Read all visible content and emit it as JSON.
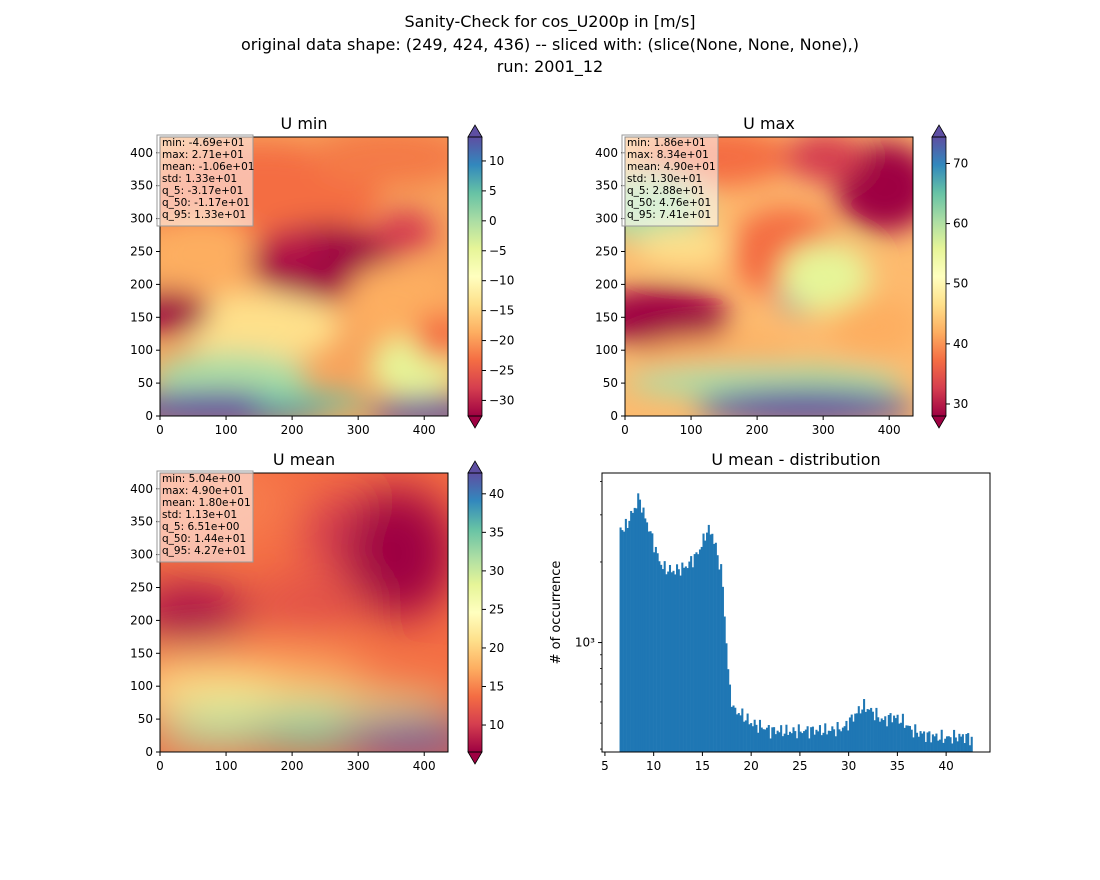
{
  "figure": {
    "title_lines": [
      "Sanity-Check for cos_U200p in [m/s]",
      "original data shape: (249, 424, 436) -- sliced with: (slice(None, None, None),)",
      "run: 2001_12"
    ]
  },
  "panels": [
    {
      "title": "U min",
      "cmap": "Spectral",
      "x_ticks": [
        "0",
        "100",
        "200",
        "300",
        "400"
      ],
      "y_ticks": [
        "0",
        "50",
        "100",
        "150",
        "200",
        "250",
        "300",
        "350",
        "400"
      ],
      "colorbar_ticks": [
        "−30",
        "−25",
        "−20",
        "−15",
        "−10",
        "−5",
        "0",
        "5",
        "10"
      ],
      "colorbar_range": [
        -32.6,
        14.0
      ],
      "stats": [
        "min: -4.69e+01",
        "max: 2.71e+01",
        "mean: -1.06e+01",
        "std: 1.33e+01",
        "q_5: -3.17e+01",
        "q_50: -1.17e+01",
        "q_95: 1.33e+01"
      ]
    },
    {
      "title": "U max",
      "cmap": "Spectral",
      "x_ticks": [
        "0",
        "100",
        "200",
        "300",
        "400"
      ],
      "y_ticks": [
        "0",
        "50",
        "100",
        "150",
        "200",
        "250",
        "300",
        "350",
        "400"
      ],
      "colorbar_ticks": [
        "30",
        "40",
        "50",
        "60",
        "70"
      ],
      "colorbar_range": [
        28.0,
        74.4
      ],
      "stats": [
        "min: 1.86e+01",
        "max: 8.34e+01",
        "mean: 4.90e+01",
        "std: 1.30e+01",
        "q_5: 2.88e+01",
        "q_50: 4.76e+01",
        "q_95: 7.41e+01"
      ]
    },
    {
      "title": "U mean",
      "cmap": "Spectral",
      "x_ticks": [
        "0",
        "100",
        "200",
        "300",
        "400"
      ],
      "y_ticks": [
        "0",
        "50",
        "100",
        "150",
        "200",
        "250",
        "300",
        "350",
        "400"
      ],
      "colorbar_ticks": [
        "10",
        "15",
        "20",
        "25",
        "30",
        "35",
        "40"
      ],
      "colorbar_range": [
        6.5,
        42.7
      ],
      "stats": [
        "min: 5.04e+00",
        "max: 4.90e+01",
        "mean: 1.80e+01",
        "std: 1.13e+01",
        "q_5: 6.51e+00",
        "q_50: 1.44e+01",
        "q_95: 4.27e+01"
      ]
    }
  ],
  "chart_data": {
    "type": "bar",
    "title": "U mean - distribution",
    "ylabel": "# of occurrence",
    "yscale": "log",
    "y_tick_label": "10³",
    "color": "#1f77b4",
    "x_ticks": [
      "5",
      "10",
      "15",
      "20",
      "25",
      "30",
      "35",
      "40"
    ],
    "xlim": [
      4.7,
      44.5
    ],
    "ylim": [
      390,
      4300
    ],
    "bin_range": [
      6.5,
      42.7
    ],
    "anchors": [
      [
        6.5,
        2700
      ],
      [
        7.0,
        2650
      ],
      [
        7.5,
        2900
      ],
      [
        8.0,
        3150
      ],
      [
        8.5,
        3500
      ],
      [
        9.0,
        3000
      ],
      [
        10.0,
        2350
      ],
      [
        10.5,
        2050
      ],
      [
        11.0,
        1900
      ],
      [
        12.0,
        1850
      ],
      [
        13.0,
        1900
      ],
      [
        13.5,
        1950
      ],
      [
        14.0,
        2050
      ],
      [
        14.5,
        2150
      ],
      [
        15.0,
        2350
      ],
      [
        15.5,
        2650
      ],
      [
        16.0,
        2550
      ],
      [
        16.5,
        2150
      ],
      [
        17.0,
        1800
      ],
      [
        17.3,
        1200
      ],
      [
        17.7,
        700
      ],
      [
        18.2,
        560
      ],
      [
        19.0,
        540
      ],
      [
        20.0,
        500
      ],
      [
        22.0,
        470
      ],
      [
        24.0,
        465
      ],
      [
        26.0,
        470
      ],
      [
        28.0,
        470
      ],
      [
        29.5,
        480
      ],
      [
        30.5,
        530
      ],
      [
        31.5,
        580
      ],
      [
        32.5,
        550
      ],
      [
        33.5,
        510
      ],
      [
        34.5,
        530
      ],
      [
        35.5,
        510
      ],
      [
        36.5,
        470
      ],
      [
        38.0,
        450
      ],
      [
        40.0,
        440
      ],
      [
        41.0,
        445
      ],
      [
        42.0,
        445
      ],
      [
        42.7,
        435
      ]
    ]
  }
}
